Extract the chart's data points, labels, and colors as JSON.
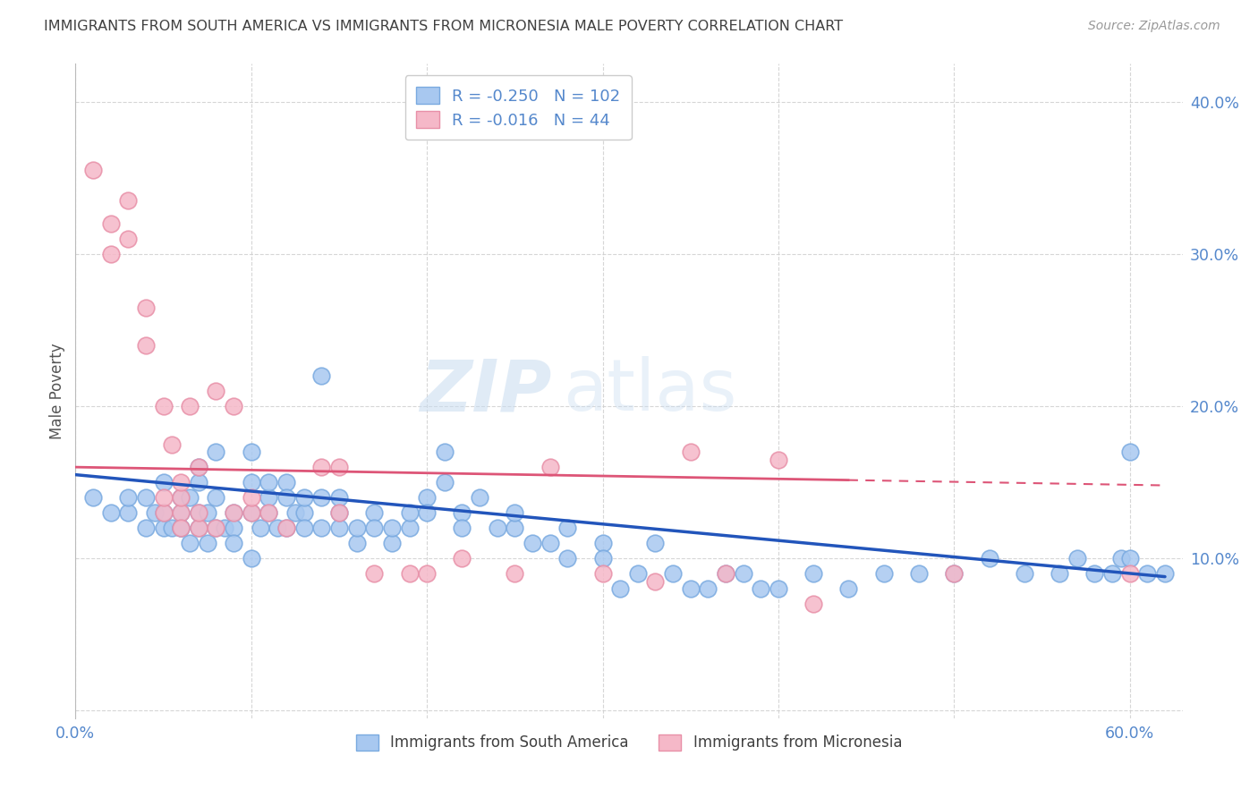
{
  "title": "IMMIGRANTS FROM SOUTH AMERICA VS IMMIGRANTS FROM MICRONESIA MALE POVERTY CORRELATION CHART",
  "source": "Source: ZipAtlas.com",
  "ylabel": "Male Poverty",
  "xlim": [
    0.0,
    0.63
  ],
  "ylim": [
    -0.005,
    0.425
  ],
  "ytick_vals": [
    0.0,
    0.1,
    0.2,
    0.3,
    0.4
  ],
  "ytick_labels": [
    "",
    "10.0%",
    "20.0%",
    "30.0%",
    "40.0%"
  ],
  "xtick_vals": [
    0.0,
    0.1,
    0.2,
    0.3,
    0.4,
    0.5,
    0.6
  ],
  "xtick_labels": [
    "0.0%",
    "",
    "",
    "",
    "",
    "",
    "60.0%"
  ],
  "blue_R": -0.25,
  "blue_N": 102,
  "pink_R": -0.016,
  "pink_N": 44,
  "legend_label_blue": "Immigrants from South America",
  "legend_label_pink": "Immigrants from Micronesia",
  "blue_color": "#A8C8F0",
  "pink_color": "#F5B8C8",
  "blue_edge_color": "#7AAAE0",
  "pink_edge_color": "#E890A8",
  "blue_line_color": "#2255BB",
  "pink_line_color": "#DD5577",
  "watermark_zip": "ZIP",
  "watermark_atlas": "atlas",
  "title_color": "#404040",
  "axis_tick_color": "#5588CC",
  "grid_color": "#CCCCCC",
  "blue_scatter_x": [
    0.01,
    0.02,
    0.03,
    0.03,
    0.04,
    0.04,
    0.045,
    0.05,
    0.05,
    0.05,
    0.055,
    0.06,
    0.06,
    0.06,
    0.06,
    0.065,
    0.065,
    0.07,
    0.07,
    0.07,
    0.07,
    0.075,
    0.075,
    0.08,
    0.08,
    0.08,
    0.085,
    0.09,
    0.09,
    0.09,
    0.1,
    0.1,
    0.1,
    0.1,
    0.105,
    0.11,
    0.11,
    0.11,
    0.115,
    0.12,
    0.12,
    0.12,
    0.125,
    0.13,
    0.13,
    0.13,
    0.14,
    0.14,
    0.14,
    0.15,
    0.15,
    0.15,
    0.16,
    0.16,
    0.17,
    0.17,
    0.18,
    0.18,
    0.19,
    0.19,
    0.2,
    0.2,
    0.21,
    0.21,
    0.22,
    0.22,
    0.23,
    0.24,
    0.25,
    0.25,
    0.26,
    0.27,
    0.28,
    0.28,
    0.3,
    0.3,
    0.31,
    0.32,
    0.33,
    0.34,
    0.35,
    0.36,
    0.37,
    0.38,
    0.39,
    0.4,
    0.42,
    0.44,
    0.46,
    0.48,
    0.5,
    0.52,
    0.54,
    0.56,
    0.57,
    0.58,
    0.59,
    0.595,
    0.6,
    0.6,
    0.61,
    0.62
  ],
  "blue_scatter_y": [
    0.14,
    0.13,
    0.13,
    0.14,
    0.12,
    0.14,
    0.13,
    0.12,
    0.13,
    0.15,
    0.12,
    0.12,
    0.13,
    0.14,
    0.12,
    0.11,
    0.14,
    0.12,
    0.13,
    0.15,
    0.16,
    0.11,
    0.13,
    0.12,
    0.14,
    0.17,
    0.12,
    0.13,
    0.12,
    0.11,
    0.1,
    0.13,
    0.15,
    0.17,
    0.12,
    0.13,
    0.14,
    0.15,
    0.12,
    0.12,
    0.15,
    0.14,
    0.13,
    0.13,
    0.14,
    0.12,
    0.12,
    0.14,
    0.22,
    0.12,
    0.13,
    0.14,
    0.11,
    0.12,
    0.13,
    0.12,
    0.11,
    0.12,
    0.12,
    0.13,
    0.14,
    0.13,
    0.17,
    0.15,
    0.13,
    0.12,
    0.14,
    0.12,
    0.12,
    0.13,
    0.11,
    0.11,
    0.1,
    0.12,
    0.11,
    0.1,
    0.08,
    0.09,
    0.11,
    0.09,
    0.08,
    0.08,
    0.09,
    0.09,
    0.08,
    0.08,
    0.09,
    0.08,
    0.09,
    0.09,
    0.09,
    0.1,
    0.09,
    0.09,
    0.1,
    0.09,
    0.09,
    0.1,
    0.1,
    0.17,
    0.09,
    0.09
  ],
  "pink_scatter_x": [
    0.01,
    0.02,
    0.02,
    0.03,
    0.03,
    0.04,
    0.04,
    0.05,
    0.05,
    0.05,
    0.055,
    0.06,
    0.06,
    0.06,
    0.06,
    0.065,
    0.07,
    0.07,
    0.07,
    0.08,
    0.08,
    0.09,
    0.09,
    0.1,
    0.1,
    0.11,
    0.12,
    0.14,
    0.15,
    0.15,
    0.17,
    0.19,
    0.2,
    0.22,
    0.25,
    0.27,
    0.3,
    0.33,
    0.35,
    0.37,
    0.4,
    0.42,
    0.5,
    0.6
  ],
  "pink_scatter_y": [
    0.355,
    0.3,
    0.32,
    0.31,
    0.335,
    0.265,
    0.24,
    0.2,
    0.13,
    0.14,
    0.175,
    0.13,
    0.14,
    0.15,
    0.12,
    0.2,
    0.12,
    0.13,
    0.16,
    0.12,
    0.21,
    0.2,
    0.13,
    0.13,
    0.14,
    0.13,
    0.12,
    0.16,
    0.13,
    0.16,
    0.09,
    0.09,
    0.09,
    0.1,
    0.09,
    0.16,
    0.09,
    0.085,
    0.17,
    0.09,
    0.165,
    0.07,
    0.09,
    0.09
  ],
  "blue_trend_x": [
    0.0,
    0.62
  ],
  "blue_trend_y": [
    0.155,
    0.088
  ],
  "pink_trend_x": [
    0.0,
    0.62
  ],
  "pink_trend_y": [
    0.16,
    0.148
  ]
}
